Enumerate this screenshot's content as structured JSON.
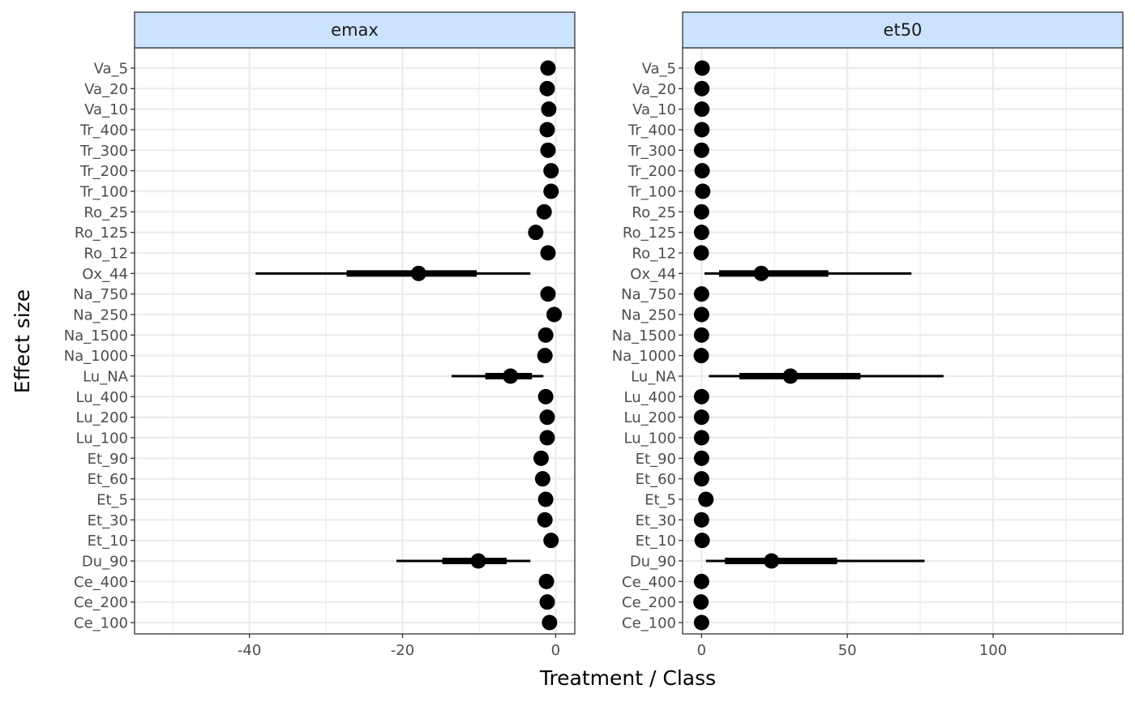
{
  "chart_data": {
    "type": "forest",
    "xlabel": "Treatment / Class",
    "ylabel": "Effect size",
    "grid": true,
    "legend": "none",
    "colors": {
      "strip_fill": "#cce3ff",
      "point": "#000000",
      "grid": "#ebebeb",
      "border": "#333333"
    },
    "categories": [
      "Va_5",
      "Va_20",
      "Va_10",
      "Tr_400",
      "Tr_300",
      "Tr_200",
      "Tr_100",
      "Ro_25",
      "Ro_125",
      "Ro_12",
      "Ox_44",
      "Na_750",
      "Na_250",
      "Na_1500",
      "Na_1000",
      "Lu_NA",
      "Lu_400",
      "Lu_200",
      "Lu_100",
      "Et_90",
      "Et_60",
      "Et_5",
      "Et_30",
      "Et_10",
      "Du_90",
      "Ce_400",
      "Ce_200",
      "Ce_100"
    ],
    "panels": [
      {
        "strip": "emax",
        "xlim": [
          -55,
          2.5
        ],
        "ticks": [
          -40,
          -20,
          0
        ],
        "tick_labels": [
          "-40",
          "-20",
          "0"
        ],
        "points": [
          {
            "est": -1.0
          },
          {
            "est": -1.1
          },
          {
            "est": -0.9
          },
          {
            "est": -1.1
          },
          {
            "est": -1.0
          },
          {
            "est": -0.6
          },
          {
            "est": -0.6
          },
          {
            "est": -1.5
          },
          {
            "est": -2.6
          },
          {
            "est": -1.0
          },
          {
            "est": -17.9,
            "inner": [
              -27.3,
              -10.3
            ],
            "outer": [
              -39.2,
              -3.3
            ]
          },
          {
            "est": -1.0
          },
          {
            "est": -0.2
          },
          {
            "est": -1.3
          },
          {
            "est": -1.4
          },
          {
            "est": -5.9,
            "inner": [
              -9.2,
              -3.1
            ],
            "outer": [
              -13.6,
              -1.6
            ]
          },
          {
            "est": -1.3
          },
          {
            "est": -1.1
          },
          {
            "est": -1.1
          },
          {
            "est": -1.9
          },
          {
            "est": -1.7
          },
          {
            "est": -1.3
          },
          {
            "est": -1.4
          },
          {
            "est": -0.6
          },
          {
            "est": -10.1,
            "inner": [
              -14.8,
              -6.4
            ],
            "outer": [
              -20.8,
              -3.3
            ]
          },
          {
            "est": -1.2
          },
          {
            "est": -1.1
          },
          {
            "est": -0.8
          }
        ]
      },
      {
        "strip": "et50",
        "xlim": [
          -6.5,
          144.5
        ],
        "ticks": [
          0,
          50,
          100
        ],
        "tick_labels": [
          "0",
          "50",
          "100"
        ],
        "points": [
          {
            "est": 0.2
          },
          {
            "est": 0.1
          },
          {
            "est": 0.1
          },
          {
            "est": 0.1
          },
          {
            "est": 0.0
          },
          {
            "est": 0.2
          },
          {
            "est": 0.4
          },
          {
            "est": 0.0
          },
          {
            "est": 0.0
          },
          {
            "est": -0.1
          },
          {
            "est": 20.5,
            "inner": [
              6.0,
              43.5
            ],
            "outer": [
              1.0,
              72.0
            ]
          },
          {
            "est": 0.0
          },
          {
            "est": 0.0
          },
          {
            "est": 0.0
          },
          {
            "est": -0.1
          },
          {
            "est": 30.5,
            "inner": [
              13.0,
              54.5
            ],
            "outer": [
              2.5,
              83.0
            ]
          },
          {
            "est": 0.0
          },
          {
            "est": 0.0
          },
          {
            "est": 0.0
          },
          {
            "est": 0.0
          },
          {
            "est": 0.0
          },
          {
            "est": 1.5
          },
          {
            "est": 0.0
          },
          {
            "est": 0.2
          },
          {
            "est": 24.0,
            "inner": [
              8.0,
              46.5
            ],
            "outer": [
              1.5,
              76.5
            ]
          },
          {
            "est": 0.0
          },
          {
            "est": -0.2
          },
          {
            "est": 0.0
          }
        ]
      }
    ]
  }
}
